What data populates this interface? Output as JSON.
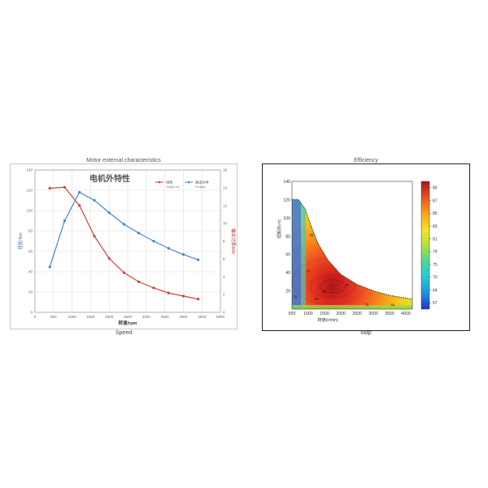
{
  "panels": {
    "left_title": "Motor external characteristics",
    "left_caption": "Speed",
    "right_title": "Efficiency",
    "right_caption": "Map"
  },
  "chart_data": [
    {
      "type": "line",
      "title": "电机外特性",
      "xlabel": "转速/rpm",
      "ylabel_left": "扭矩/Nm",
      "ylabel_right": "输出功率/kW",
      "xlim": [
        0,
        5000
      ],
      "xticks": [
        0,
        500,
        1000,
        1500,
        2000,
        2500,
        3000,
        3500,
        4000,
        4500,
        5000
      ],
      "ylim_left": [
        0,
        140
      ],
      "yticks_left": [
        0,
        20,
        40,
        60,
        80,
        100,
        120,
        140
      ],
      "ylim_right": [
        0,
        16
      ],
      "yticks_right": [
        0,
        2,
        4,
        6,
        8,
        10,
        12,
        14,
        16
      ],
      "grid": true,
      "legend_position": "top-right",
      "series": [
        {
          "name": "扭矩",
          "legend_sub": "Torq[N.m]",
          "axis": "left",
          "color": "#c8453a",
          "x": [
            400,
            800,
            1200,
            1600,
            2000,
            2400,
            2800,
            3200,
            3600,
            4000,
            4400
          ],
          "y": [
            122,
            123,
            105,
            75,
            53,
            39,
            30,
            24,
            19,
            16,
            13
          ]
        },
        {
          "name": "输出功率",
          "legend_sub": "Pm[kw]",
          "axis": "right",
          "color": "#4a86c8",
          "x": [
            400,
            800,
            1200,
            1600,
            2000,
            2400,
            2800,
            3200,
            3600,
            4000,
            4400
          ],
          "y": [
            5.1,
            10.3,
            13.5,
            12.6,
            11.2,
            9.9,
            8.9,
            8.0,
            7.2,
            6.5,
            5.9
          ]
        }
      ]
    },
    {
      "type": "heatmap",
      "xlabel": "转速(r/min)",
      "ylabel": "扭矩(N.m)",
      "xlim": [
        500,
        4200
      ],
      "xticks": [
        500,
        1000,
        1500,
        2000,
        2500,
        3000,
        3500,
        4000
      ],
      "ylim": [
        0,
        140
      ],
      "yticks": [
        20,
        40,
        60,
        80,
        100,
        120,
        140
      ],
      "colorbar_ticks": [
        57,
        64,
        70,
        75,
        79,
        81,
        83,
        85,
        87,
        89
      ],
      "colorbar_range": [
        57,
        90
      ],
      "boundary": {
        "x": [
          500,
          700,
          900,
          1100,
          1300,
          1600,
          2000,
          2500,
          3000,
          3500,
          4000,
          4200
        ],
        "y": [
          120,
          120,
          110,
          90,
          72,
          54,
          38,
          27,
          20,
          15,
          12,
          11
        ]
      },
      "peak": {
        "x": 1750,
        "y": 25,
        "value": 89
      },
      "contour_labels": [
        {
          "x": 1100,
          "y": 80,
          "text": "83"
        },
        {
          "x": 1000,
          "y": 40,
          "text": "79"
        },
        {
          "x": 2200,
          "y": 25,
          "text": "87"
        },
        {
          "x": 1500,
          "y": 18,
          "text": "85"
        },
        {
          "x": 1250,
          "y": 10,
          "text": "83"
        },
        {
          "x": 2800,
          "y": 3,
          "text": "70"
        },
        {
          "x": 3600,
          "y": 3,
          "text": "64"
        },
        {
          "x": 600,
          "y": 12,
          "text": "75"
        }
      ]
    }
  ]
}
